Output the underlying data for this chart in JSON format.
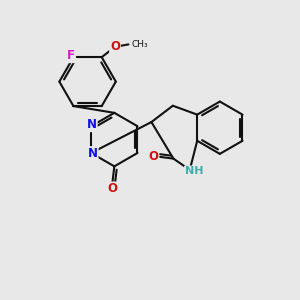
{
  "background_color": "#e8e8e8",
  "bond_color": "#111111",
  "bond_width": 1.5,
  "atom_colors": {
    "N": "#1010ee",
    "O": "#cc1111",
    "F": "#cc22cc",
    "NH": "#44aaaa",
    "C": "#111111"
  },
  "font_size": 8.5,
  "fig_size": [
    3.0,
    3.0
  ],
  "dpi": 100
}
